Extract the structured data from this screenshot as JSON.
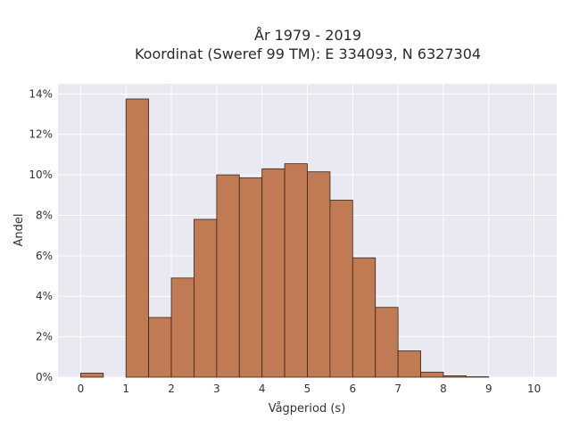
{
  "chart_data": {
    "type": "bar",
    "title_line1": "År 1979 - 2019",
    "title_line2": "Koordinat (Sweref 99 TM): E 334093, N 6327304",
    "xlabel": "Vågperiod (s)",
    "ylabel": "Andel",
    "xlim": [
      -0.5,
      10.5
    ],
    "ylim": [
      0,
      14.5
    ],
    "x_ticks": [
      0,
      1,
      2,
      3,
      4,
      5,
      6,
      7,
      8,
      9,
      10
    ],
    "y_ticks": [
      0,
      2,
      4,
      6,
      8,
      10,
      12,
      14
    ],
    "y_tick_suffix": "%",
    "bin_width": 0.5,
    "bins": [
      {
        "start": 0.0,
        "value": 0.2
      },
      {
        "start": 1.0,
        "value": 13.75
      },
      {
        "start": 1.5,
        "value": 2.95
      },
      {
        "start": 2.0,
        "value": 4.9
      },
      {
        "start": 2.5,
        "value": 7.8
      },
      {
        "start": 3.0,
        "value": 10.0
      },
      {
        "start": 3.5,
        "value": 9.85
      },
      {
        "start": 4.0,
        "value": 10.3
      },
      {
        "start": 4.5,
        "value": 10.55
      },
      {
        "start": 5.0,
        "value": 10.15
      },
      {
        "start": 5.5,
        "value": 8.75
      },
      {
        "start": 6.0,
        "value": 5.9
      },
      {
        "start": 6.5,
        "value": 3.45
      },
      {
        "start": 7.0,
        "value": 1.3
      },
      {
        "start": 7.5,
        "value": 0.25
      },
      {
        "start": 8.0,
        "value": 0.07
      },
      {
        "start": 8.5,
        "value": 0.02
      }
    ],
    "bar_color": "#c07b55",
    "plot_bg": "#e8e9f1",
    "grid": true
  }
}
